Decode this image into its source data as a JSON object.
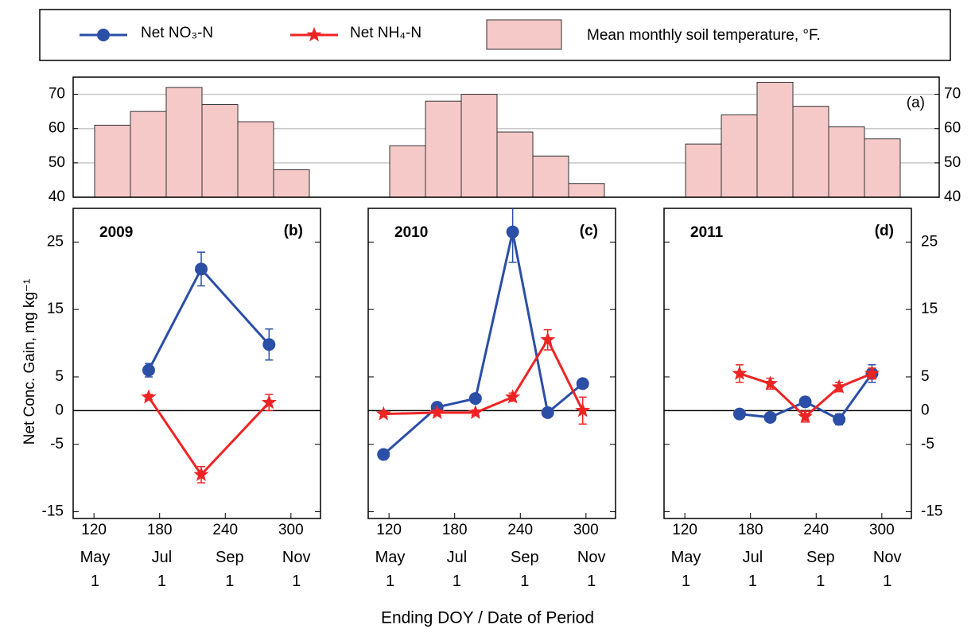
{
  "chart_data": [
    {
      "type": "bar",
      "annotation": "(a)",
      "categories": [
        null,
        null,
        null,
        null,
        null,
        null,
        null,
        null,
        null,
        null,
        null,
        null,
        null,
        null,
        null,
        null,
        null,
        null
      ],
      "series": [
        {
          "name": "Mean monthly soil temperature, °F.",
          "color": "#f6c9c9",
          "values": [
            61,
            65,
            72,
            67,
            62,
            48,
            55,
            68,
            70,
            59,
            52,
            44,
            55.5,
            64,
            73.5,
            66.5,
            60.5,
            57
          ]
        }
      ],
      "ylim": [
        40,
        75
      ],
      "yticks": [
        40,
        50,
        60,
        70
      ],
      "grid": true
    },
    {
      "type": "line",
      "title": "2009",
      "annotation": "(b)",
      "ylabel": "Net Conc. Gain, mg kg⁻¹",
      "xlim": [
        101,
        327
      ],
      "xticks": [
        120,
        180,
        240,
        300
      ],
      "date_ticks": [
        {
          "value": 121,
          "label": "May\n1"
        },
        {
          "value": 182,
          "label": "Jul\n1"
        },
        {
          "value": 244,
          "label": "Sep\n1"
        },
        {
          "value": 305,
          "label": "Nov\n1"
        }
      ],
      "ylim": [
        -16,
        30
      ],
      "yticks": [
        -15,
        -5,
        0,
        5,
        15,
        25
      ],
      "series": [
        {
          "name": "Net NO₃-N",
          "color": "#2b4ea6",
          "marker": "circle",
          "x": [
            170,
            218,
            280
          ],
          "values": [
            6,
            21,
            9.8
          ],
          "errors": [
            1,
            2.5,
            2.3
          ]
        },
        {
          "name": "Net NH₄-N",
          "color": "#ee2424",
          "marker": "star",
          "x": [
            170,
            218,
            280
          ],
          "values": [
            2,
            -9.5,
            1.2
          ],
          "errors": [
            0.4,
            1.2,
            1.2
          ]
        }
      ]
    },
    {
      "type": "line",
      "title": "2010",
      "annotation": "(c)",
      "xlabel": "Ending DOY / Date of Period",
      "xlim": [
        101,
        327
      ],
      "xticks": [
        120,
        180,
        240,
        300
      ],
      "date_ticks": [
        {
          "value": 121,
          "label": "May\n1"
        },
        {
          "value": 182,
          "label": "Jul\n1"
        },
        {
          "value": 244,
          "label": "Sep\n1"
        },
        {
          "value": 305,
          "label": "Nov\n1"
        }
      ],
      "ylim": [
        -16,
        30
      ],
      "yticks": [
        -15,
        -5,
        0,
        5,
        15,
        25
      ],
      "series": [
        {
          "name": "Net NO₃-N",
          "color": "#2b4ea6",
          "marker": "circle",
          "x": [
            115,
            164,
            199,
            233,
            265,
            297
          ],
          "values": [
            -6.5,
            0.5,
            1.8,
            26.5,
            -0.3,
            4
          ],
          "errors": [
            0.4,
            0.4,
            0.5,
            4.5,
            0.4,
            0.5
          ]
        },
        {
          "name": "Net NH₄-N",
          "color": "#ee2424",
          "marker": "star",
          "x": [
            115,
            164,
            199,
            233,
            265,
            297
          ],
          "values": [
            -0.5,
            -0.3,
            -0.3,
            2,
            10.5,
            0
          ],
          "errors": [
            0.4,
            0.4,
            0.4,
            0.6,
            1.5,
            2
          ]
        }
      ]
    },
    {
      "type": "line",
      "title": "2011",
      "annotation": "(d)",
      "xlim": [
        101,
        327
      ],
      "xticks": [
        120,
        180,
        240,
        300
      ],
      "date_ticks": [
        {
          "value": 121,
          "label": "May\n1"
        },
        {
          "value": 182,
          "label": "Jul\n1"
        },
        {
          "value": 244,
          "label": "Sep\n1"
        },
        {
          "value": 305,
          "label": "Nov\n1"
        }
      ],
      "ylim": [
        -16,
        30
      ],
      "yticks": [
        -15,
        -5,
        0,
        5,
        15,
        25
      ],
      "series": [
        {
          "name": "Net NO₃-N",
          "color": "#2b4ea6",
          "marker": "circle",
          "x": [
            170,
            198,
            230,
            261,
            291
          ],
          "values": [
            -0.5,
            -1,
            1.3,
            -1.3,
            5.5
          ],
          "errors": [
            0.5,
            0.6,
            0.7,
            0.8,
            1.3
          ]
        },
        {
          "name": "Net NH₄-N",
          "color": "#ee2424",
          "marker": "star",
          "x": [
            170,
            198,
            230,
            261,
            291
          ],
          "values": [
            5.5,
            4,
            -0.9,
            3.5,
            5.5
          ],
          "errors": [
            1.3,
            0.8,
            0.8,
            0.7,
            0.8
          ]
        }
      ]
    }
  ]
}
